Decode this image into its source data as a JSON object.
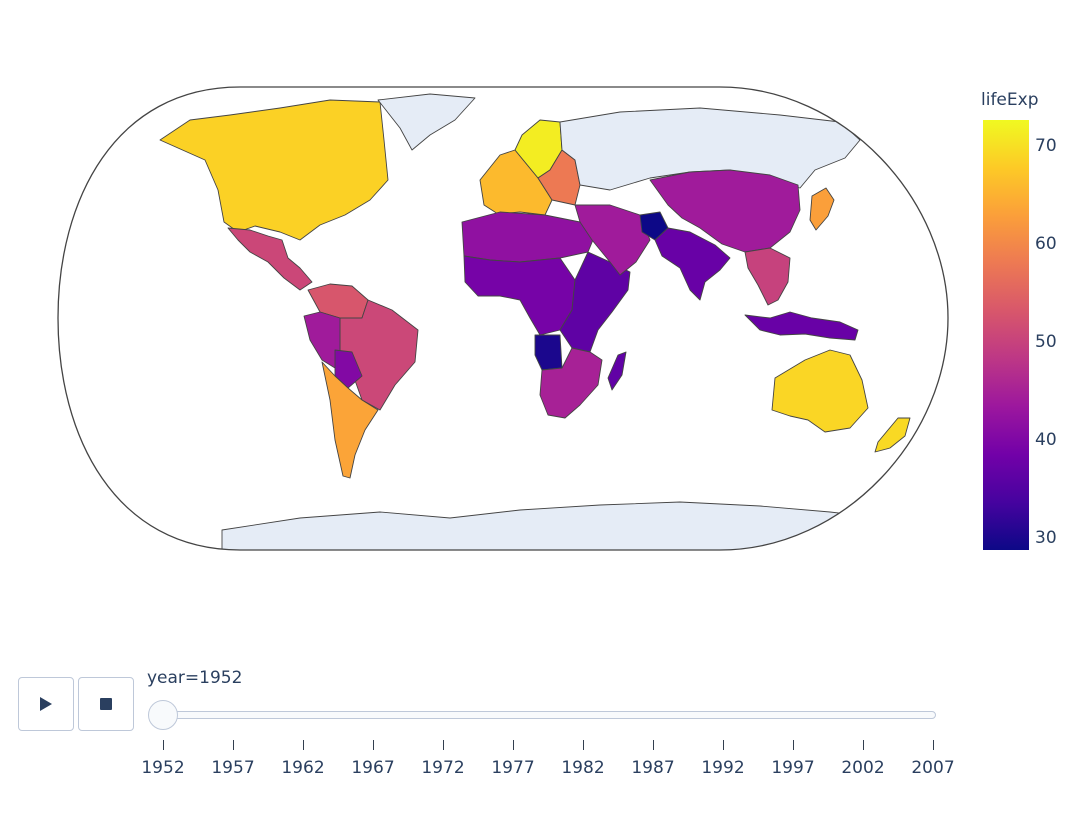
{
  "chart_data": {
    "type": "choropleth",
    "projection": "natural earth",
    "color_variable": "lifeExp",
    "frame_label_prefix": "year=",
    "current_frame": "1952",
    "colorscale": [
      "#0d0887",
      "#46039f",
      "#7201a8",
      "#9c179e",
      "#bd3786",
      "#d8576b",
      "#ed7953",
      "#fb9f3a",
      "#fdca26",
      "#f0f921"
    ],
    "color_range": [
      28.8,
      72.7
    ],
    "colorbar": {
      "title": "lifeExp",
      "ticks": [
        30,
        40,
        50,
        60,
        70
      ],
      "tick_labels": [
        "30",
        "40",
        "50",
        "60",
        "70"
      ]
    },
    "no_data_color": "#e5ecf6",
    "regions": [
      {
        "name": "North America (US/Canada)",
        "lifeExp": 68.5
      },
      {
        "name": "Greenland",
        "lifeExp": null
      },
      {
        "name": "Mexico & Central America",
        "lifeExp": 50.8
      },
      {
        "name": "Colombia/Venezuela",
        "lifeExp": 53.0
      },
      {
        "name": "Brazil",
        "lifeExp": 50.9
      },
      {
        "name": "Peru/Ecuador",
        "lifeExp": 44.0
      },
      {
        "name": "Bolivia",
        "lifeExp": 40.4
      },
      {
        "name": "Argentina/Chile/Uruguay",
        "lifeExp": 63.5
      },
      {
        "name": "Western Europe",
        "lifeExp": 66.0
      },
      {
        "name": "Scandinavia",
        "lifeExp": 71.5
      },
      {
        "name": "Eastern Europe",
        "lifeExp": 58.0
      },
      {
        "name": "Russia",
        "lifeExp": null
      },
      {
        "name": "North Africa",
        "lifeExp": 42.0
      },
      {
        "name": "West & Central Africa",
        "lifeExp": 39.0
      },
      {
        "name": "East Africa",
        "lifeExp": 36.5
      },
      {
        "name": "Angola",
        "lifeExp": 30.0
      },
      {
        "name": "Southern Africa",
        "lifeExp": 45.0
      },
      {
        "name": "Madagascar",
        "lifeExp": 36.7
      },
      {
        "name": "Middle East",
        "lifeExp": 44.0
      },
      {
        "name": "Afghanistan",
        "lifeExp": 28.8
      },
      {
        "name": "India/Pakistan",
        "lifeExp": 37.4
      },
      {
        "name": "China/Mongolia",
        "lifeExp": 44.0
      },
      {
        "name": "Japan",
        "lifeExp": 63.0
      },
      {
        "name": "Southeast Asia",
        "lifeExp": 50.0
      },
      {
        "name": "Indonesia",
        "lifeExp": 37.5
      },
      {
        "name": "Australia",
        "lifeExp": 69.1
      },
      {
        "name": "New Zealand",
        "lifeExp": 69.4
      },
      {
        "name": "Antarctica",
        "lifeExp": null
      }
    ]
  },
  "controls": {
    "play_icon": "play-icon",
    "stop_icon": "stop-icon",
    "slider_label": "year=1952",
    "current_year": "1952",
    "years": [
      "1952",
      "1957",
      "1962",
      "1967",
      "1972",
      "1977",
      "1982",
      "1987",
      "1992",
      "1997",
      "2002",
      "2007"
    ]
  }
}
